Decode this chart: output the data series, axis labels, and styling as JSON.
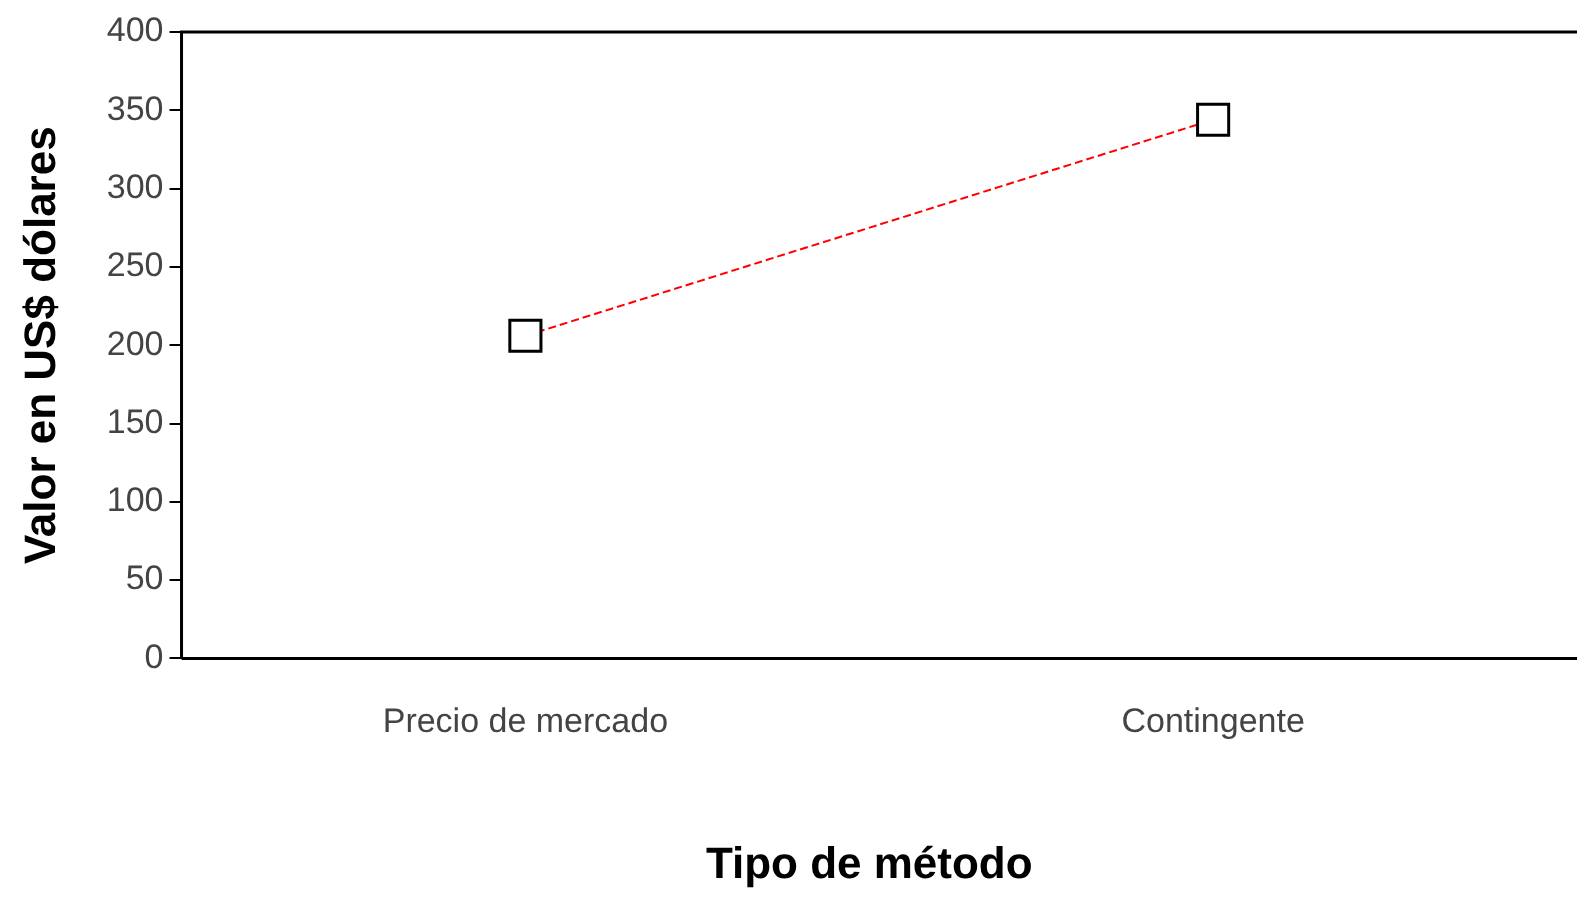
{
  "chart_data": {
    "type": "line",
    "xlabel": "Tipo de método",
    "ylabel": "Valor en US$ dólares",
    "categories": [
      "Precio de mercado",
      "Contingente"
    ],
    "series": [
      {
        "color": "#ff0000",
        "values": [
          206,
          344
        ]
      }
    ],
    "ylim": [
      0,
      400
    ],
    "yticks": [
      0,
      50,
      100,
      150,
      200,
      250,
      300,
      350,
      400
    ],
    "grid": false,
    "legend": false,
    "marker": "square",
    "line_style": "dashed"
  }
}
